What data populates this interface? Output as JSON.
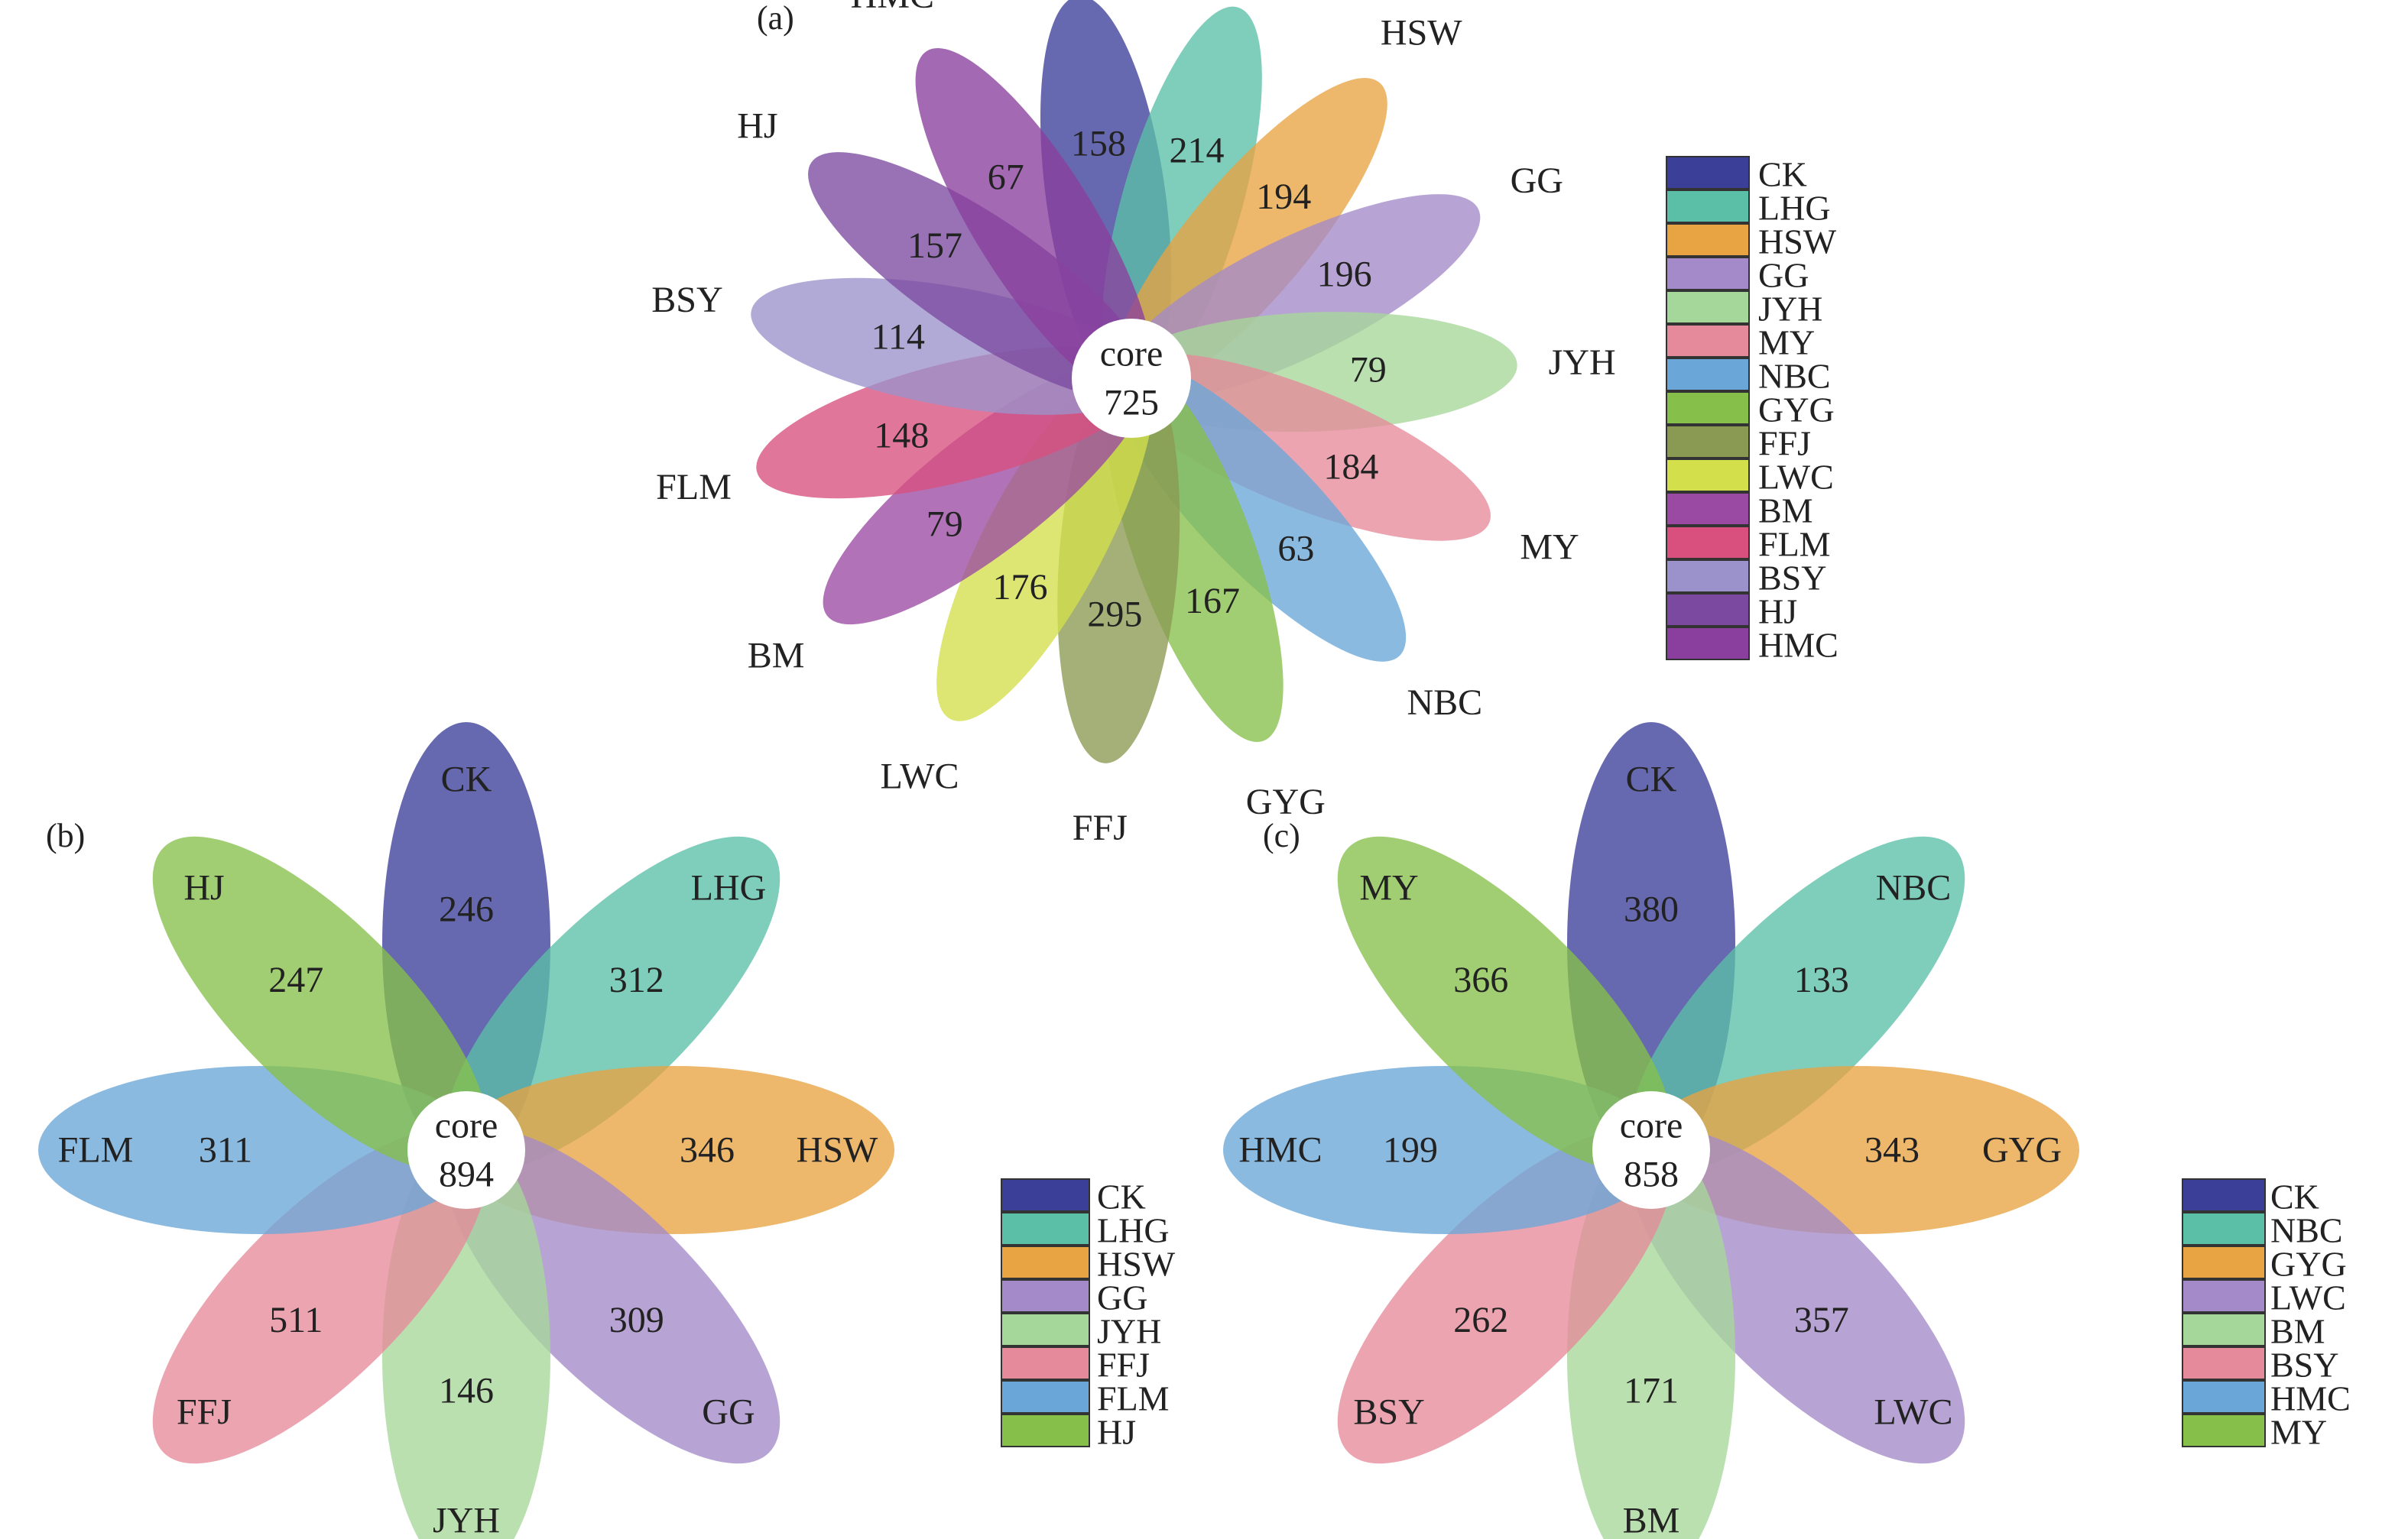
{
  "panels": [
    {
      "id": "a",
      "label": "(a)",
      "core_label": "core",
      "core_value": "725",
      "petals": [
        {
          "name": "CK",
          "value": "158",
          "color": "#3b3f98"
        },
        {
          "name": "LHG",
          "value": "214",
          "color": "#5bbfa8"
        },
        {
          "name": "HSW",
          "value": "194",
          "color": "#e8a343"
        },
        {
          "name": "GG",
          "value": "196",
          "color": "#a48ac8"
        },
        {
          "name": "JYH",
          "value": "79",
          "color": "#a6d79a"
        },
        {
          "name": "MY",
          "value": "184",
          "color": "#e58a9a"
        },
        {
          "name": "NBC",
          "value": "63",
          "color": "#6aa6d8"
        },
        {
          "name": "GYG",
          "value": "167",
          "color": "#86c04a"
        },
        {
          "name": "FFJ",
          "value": "295",
          "color": "#8b9a52"
        },
        {
          "name": "LWC",
          "value": "176",
          "color": "#d3df4b"
        },
        {
          "name": "BM",
          "value": "79",
          "color": "#9b4aa3"
        },
        {
          "name": "FLM",
          "value": "148",
          "color": "#d9507f"
        },
        {
          "name": "BSY",
          "value": "114",
          "color": "#9b92cc"
        },
        {
          "name": "HJ",
          "value": "157",
          "color": "#7b4aa0"
        },
        {
          "name": "HMC",
          "value": "67",
          "color": "#8a3f9e"
        }
      ]
    },
    {
      "id": "b",
      "label": "(b)",
      "core_label": "core",
      "core_value": "894",
      "petals": [
        {
          "name": "CK",
          "value": "246",
          "color": "#3b3f98"
        },
        {
          "name": "LHG",
          "value": "312",
          "color": "#5bbfa8"
        },
        {
          "name": "HSW",
          "value": "346",
          "color": "#e8a343"
        },
        {
          "name": "GG",
          "value": "309",
          "color": "#a48ac8"
        },
        {
          "name": "JYH",
          "value": "146",
          "color": "#a6d79a"
        },
        {
          "name": "FFJ",
          "value": "511",
          "color": "#e58a9a"
        },
        {
          "name": "FLM",
          "value": "311",
          "color": "#6aa6d8"
        },
        {
          "name": "HJ",
          "value": "247",
          "color": "#86c04a"
        }
      ]
    },
    {
      "id": "c",
      "label": "(c)",
      "core_label": "core",
      "core_value": "858",
      "petals": [
        {
          "name": "CK",
          "value": "380",
          "color": "#3b3f98"
        },
        {
          "name": "NBC",
          "value": "133",
          "color": "#5bbfa8"
        },
        {
          "name": "GYG",
          "value": "343",
          "color": "#e8a343"
        },
        {
          "name": "LWC",
          "value": "357",
          "color": "#a48ac8"
        },
        {
          "name": "BM",
          "value": "171",
          "color": "#a6d79a"
        },
        {
          "name": "BSY",
          "value": "262",
          "color": "#e58a9a"
        },
        {
          "name": "HMC",
          "value": "199",
          "color": "#6aa6d8"
        },
        {
          "name": "MY",
          "value": "366",
          "color": "#86c04a"
        }
      ]
    }
  ]
}
